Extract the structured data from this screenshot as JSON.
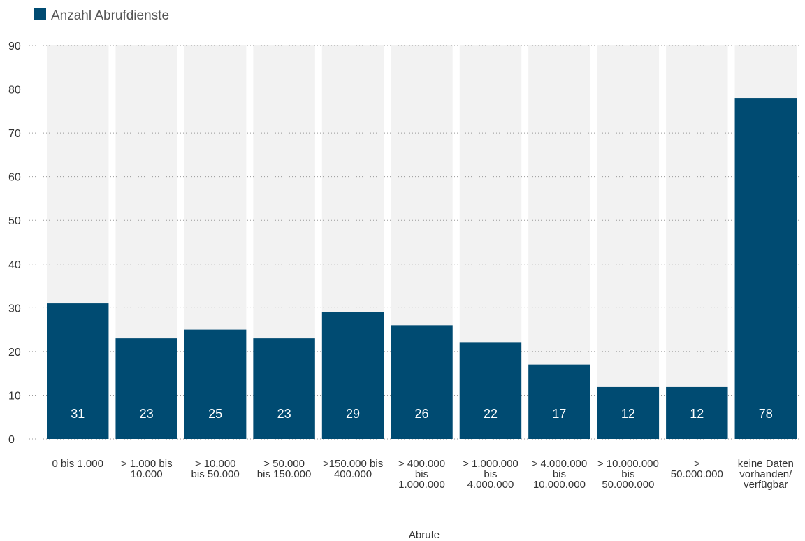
{
  "chart_data": {
    "type": "bar",
    "categories": [
      "0 bis 1.000",
      "> 1.000 bis\n10.000",
      "> 10.000\nbis 50.000",
      "> 50.000\nbis 150.000",
      ">150.000 bis\n400.000",
      "> 400.000\nbis\n1.000.000",
      "> 1.000.000\nbis\n4.000.000",
      "> 4.000.000\nbis\n10.000.000",
      "> 10.000.000\nbis\n50.000.000",
      ">\n50.000.000",
      "keine Daten\nvorhanden/\nverfügbar"
    ],
    "series": [
      {
        "name": "Anzahl Abrufdienste",
        "values": [
          31,
          23,
          25,
          23,
          29,
          26,
          22,
          17,
          12,
          12,
          78
        ],
        "data_labels": [
          "31",
          "23",
          "25",
          "23",
          "29",
          "26",
          "22",
          "17",
          "12",
          "12",
          "78"
        ]
      }
    ],
    "title": "",
    "xlabel": "Abrufe",
    "ylabel": "",
    "ylim": [
      0,
      90
    ],
    "yticks": [
      0,
      10,
      20,
      30,
      40,
      50,
      60,
      70,
      80,
      90
    ],
    "ytick_labels": [
      "0",
      "10",
      "20",
      "30",
      "40",
      "50",
      "60",
      "70",
      "80",
      "90"
    ],
    "grid": true,
    "legend_position": "top-left",
    "colors": {
      "bar": "#004b72",
      "bar_background": "#f2f2f2",
      "gridline": "#999999",
      "value_label": "#ffffff"
    }
  }
}
